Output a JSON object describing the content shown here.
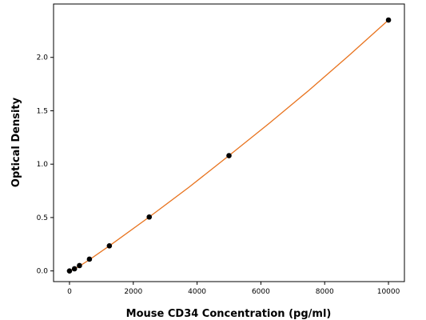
{
  "chart_data": {
    "type": "scatter",
    "title": "",
    "xlabel": "Mouse CD34 Concentration (pg/ml)",
    "ylabel": "Optical Density",
    "xlim": [
      -500,
      10500
    ],
    "ylim": [
      -0.1,
      2.5
    ],
    "x_ticks": [
      0,
      2000,
      4000,
      6000,
      8000,
      10000
    ],
    "y_ticks": [
      0.0,
      0.5,
      1.0,
      1.5,
      2.0
    ],
    "x_tick_labels": [
      "0",
      "2000",
      "4000",
      "6000",
      "8000",
      "10000"
    ],
    "y_tick_labels": [
      "0.0",
      "0.5",
      "1.0",
      "1.5",
      "2.0"
    ],
    "grid": false,
    "legend": "none",
    "series": [
      {
        "x": [
          0,
          156.25,
          312.5,
          625,
          1250,
          2500,
          5000,
          10000
        ],
        "y": [
          0.0,
          0.02,
          0.05,
          0.11,
          0.235,
          0.505,
          1.08,
          2.35
        ],
        "marker_color": "#000000"
      }
    ],
    "fit_curve": {
      "color": "#e8731e",
      "x": [
        0,
        156.25,
        312.5,
        625,
        1250,
        2500,
        3750,
        5000,
        6250,
        7500,
        8750,
        10000
      ],
      "y": [
        0.0,
        0.02,
        0.045,
        0.105,
        0.235,
        0.505,
        0.785,
        1.08,
        1.38,
        1.69,
        2.015,
        2.35
      ]
    }
  }
}
